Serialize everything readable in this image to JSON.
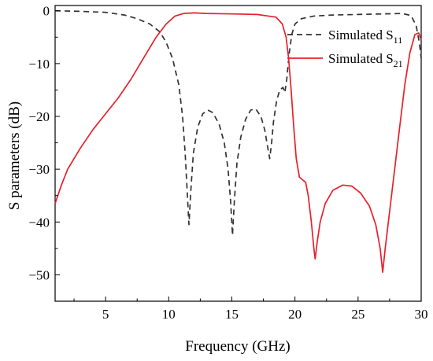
{
  "chart_data": {
    "type": "line",
    "xlabel": "Frequency (GHz)",
    "ylabel": "S parameters (dB)",
    "xlim": [
      1,
      30
    ],
    "ylim": [
      -55,
      1
    ],
    "xticks": [
      5,
      10,
      15,
      20,
      25,
      30
    ],
    "yticks": [
      0,
      -10,
      -20,
      -30,
      -40,
      -50
    ],
    "grid": false,
    "legend_position": "top-right",
    "series": [
      {
        "name_main": "Simulated S",
        "name_sub": "11",
        "style": "dashed",
        "color": "#333333",
        "points": [
          [
            1,
            0
          ],
          [
            3,
            -0.1
          ],
          [
            5,
            -0.3
          ],
          [
            6.5,
            -0.8
          ],
          [
            7.5,
            -1.5
          ],
          [
            8.5,
            -2.5
          ],
          [
            9.3,
            -4
          ],
          [
            9.8,
            -6
          ],
          [
            10.3,
            -9
          ],
          [
            10.8,
            -14
          ],
          [
            11.1,
            -20
          ],
          [
            11.3,
            -27
          ],
          [
            11.5,
            -36
          ],
          [
            11.6,
            -40.5
          ],
          [
            11.75,
            -34
          ],
          [
            11.95,
            -27
          ],
          [
            12.3,
            -22
          ],
          [
            12.7,
            -19.5
          ],
          [
            13.1,
            -18.8
          ],
          [
            13.5,
            -19.3
          ],
          [
            14,
            -21.5
          ],
          [
            14.4,
            -25
          ],
          [
            14.7,
            -30
          ],
          [
            14.9,
            -36
          ],
          [
            15.05,
            -42.5
          ],
          [
            15.2,
            -36
          ],
          [
            15.4,
            -29
          ],
          [
            15.7,
            -24
          ],
          [
            16.1,
            -20.5
          ],
          [
            16.5,
            -18.8
          ],
          [
            16.9,
            -18.6
          ],
          [
            17.3,
            -20
          ],
          [
            17.6,
            -22.5
          ],
          [
            17.85,
            -26
          ],
          [
            18.0,
            -28
          ],
          [
            18.15,
            -25
          ],
          [
            18.3,
            -21
          ],
          [
            18.55,
            -17
          ],
          [
            18.8,
            -15
          ],
          [
            19.05,
            -14.5
          ],
          [
            19.2,
            -15.5
          ],
          [
            19.35,
            -13
          ],
          [
            19.55,
            -8
          ],
          [
            19.75,
            -4.5
          ],
          [
            20.0,
            -2.5
          ],
          [
            20.5,
            -1.5
          ],
          [
            21.5,
            -1.0
          ],
          [
            23,
            -0.8
          ],
          [
            25,
            -0.7
          ],
          [
            27,
            -0.6
          ],
          [
            28.5,
            -0.5
          ],
          [
            29.2,
            -0.9
          ],
          [
            29.6,
            -2.8
          ],
          [
            29.85,
            -6
          ],
          [
            30,
            -9
          ]
        ]
      },
      {
        "name_main": "Simulated S",
        "name_sub": "21",
        "style": "solid",
        "color": "#e8202a",
        "points": [
          [
            1,
            -36.5
          ],
          [
            1.5,
            -33
          ],
          [
            2,
            -30
          ],
          [
            3,
            -26
          ],
          [
            4,
            -22.5
          ],
          [
            5,
            -19.5
          ],
          [
            6,
            -16.5
          ],
          [
            7,
            -13
          ],
          [
            8,
            -9
          ],
          [
            9,
            -5
          ],
          [
            9.8,
            -2.5
          ],
          [
            10.5,
            -1
          ],
          [
            11.2,
            -0.5
          ],
          [
            12,
            -0.4
          ],
          [
            13,
            -0.5
          ],
          [
            15,
            -0.6
          ],
          [
            17,
            -0.7
          ],
          [
            18.5,
            -1.2
          ],
          [
            19.0,
            -2.5
          ],
          [
            19.3,
            -5
          ],
          [
            19.5,
            -9
          ],
          [
            19.7,
            -15
          ],
          [
            19.9,
            -22
          ],
          [
            20.1,
            -28
          ],
          [
            20.35,
            -31.5
          ],
          [
            20.6,
            -32
          ],
          [
            20.85,
            -32.5
          ],
          [
            21.05,
            -35
          ],
          [
            21.3,
            -40
          ],
          [
            21.5,
            -45
          ],
          [
            21.6,
            -47
          ],
          [
            21.75,
            -44
          ],
          [
            22.0,
            -40
          ],
          [
            22.4,
            -36.5
          ],
          [
            23.0,
            -34
          ],
          [
            23.8,
            -33
          ],
          [
            24.5,
            -33.2
          ],
          [
            25.2,
            -34.5
          ],
          [
            25.9,
            -37
          ],
          [
            26.4,
            -40.5
          ],
          [
            26.75,
            -45
          ],
          [
            26.95,
            -49.5
          ],
          [
            27.15,
            -45
          ],
          [
            27.5,
            -38
          ],
          [
            27.9,
            -30
          ],
          [
            28.3,
            -22
          ],
          [
            28.7,
            -14
          ],
          [
            29.1,
            -8
          ],
          [
            29.5,
            -4.5
          ],
          [
            29.8,
            -4.2
          ],
          [
            30,
            -5.5
          ]
        ]
      }
    ]
  }
}
